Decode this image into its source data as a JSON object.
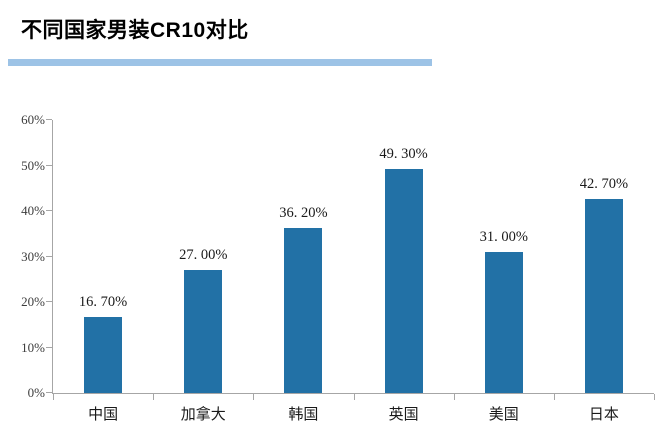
{
  "title": "不同国家男装CR10对比",
  "colors": {
    "bar": "#2271A6",
    "title_underline": "#9DC3E6",
    "axis": "#A6A6A6",
    "text": "#1A1A1A"
  },
  "chart_data": {
    "type": "bar",
    "title": "不同国家男装CR10对比",
    "categories": [
      "中国",
      "加拿大",
      "韩国",
      "英国",
      "美国",
      "日本"
    ],
    "values": [
      16.7,
      27.0,
      36.2,
      49.3,
      31.0,
      42.7
    ],
    "value_labels": [
      "16. 70%",
      "27. 00%",
      "36. 20%",
      "49. 30%",
      "31. 00%",
      "42. 70%"
    ],
    "xlabel": "",
    "ylabel": "",
    "ylim": [
      0,
      60
    ],
    "ytick_values": [
      0,
      10,
      20,
      30,
      40,
      50,
      60
    ],
    "ytick_labels": [
      "0%",
      "10%",
      "20%",
      "30%",
      "40%",
      "50%",
      "60%"
    ],
    "grid": false,
    "legend": "none",
    "series_color": "#2271A6"
  }
}
